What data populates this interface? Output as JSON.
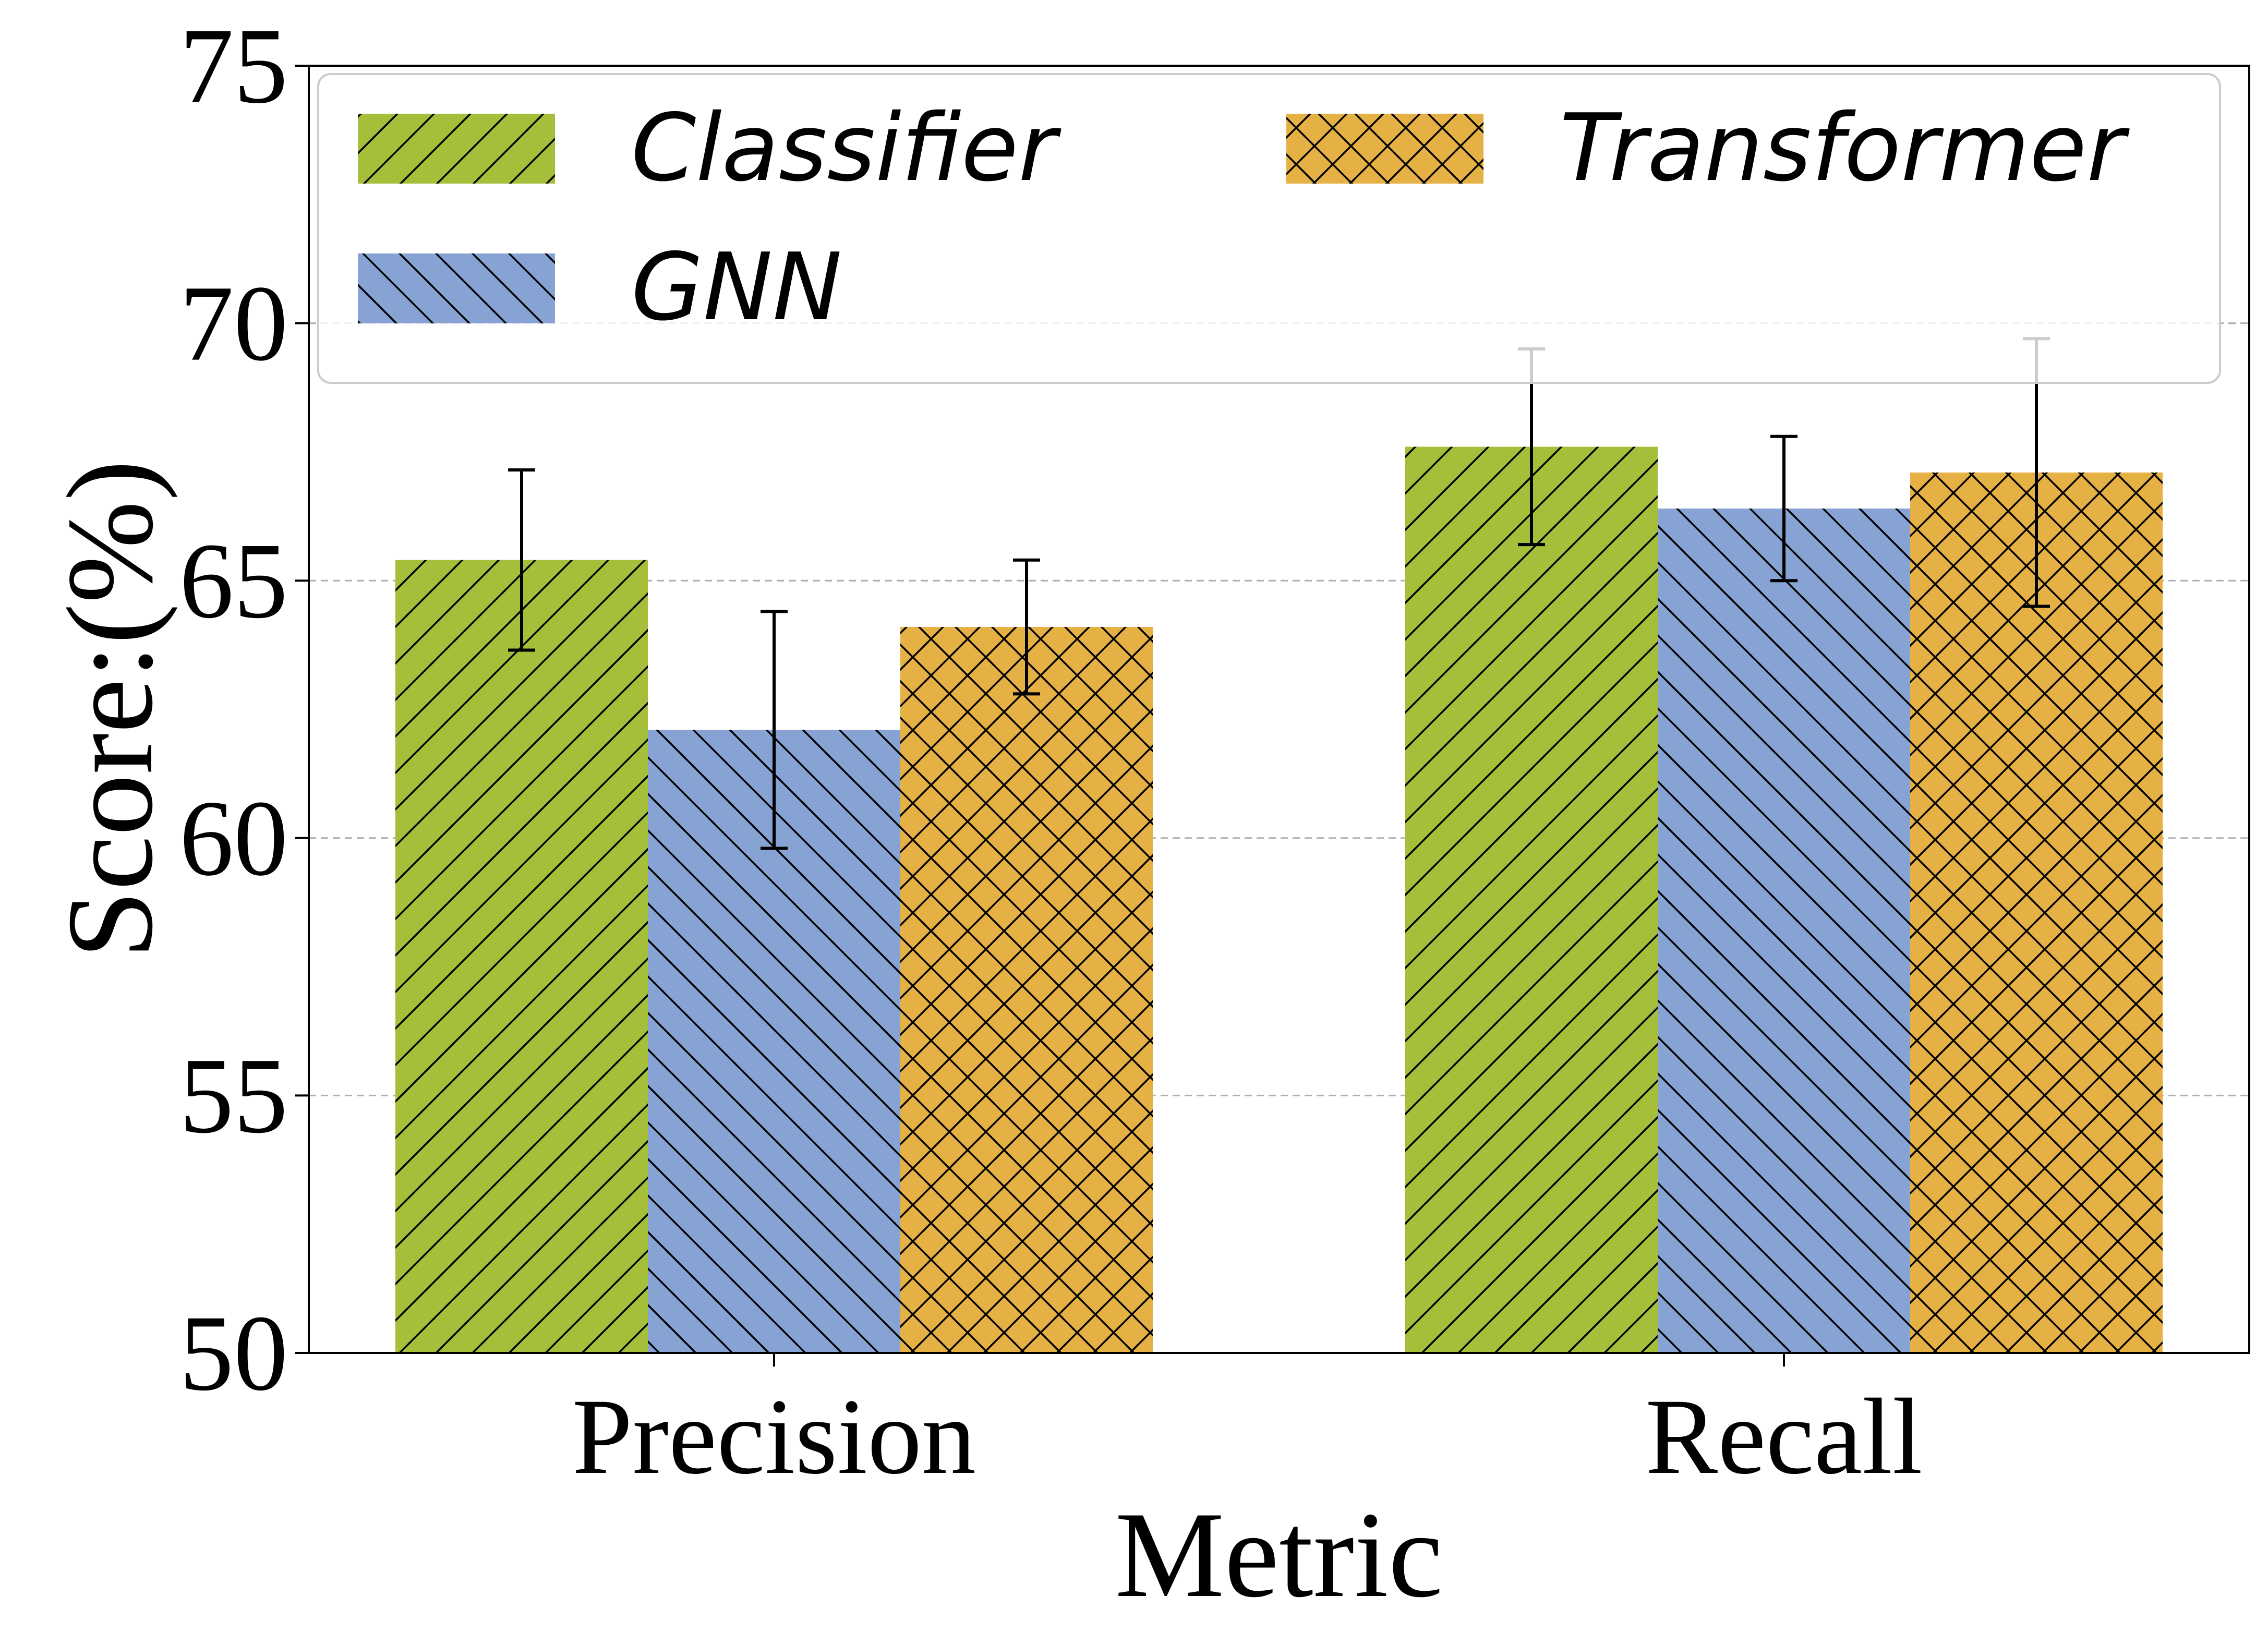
{
  "chart_data": {
    "type": "bar",
    "xlabel": "Metric",
    "ylabel": "Score:(%)",
    "categories": [
      "Precision",
      "Recall"
    ],
    "ylim": [
      50,
      75
    ],
    "yticks": [
      50,
      55,
      60,
      65,
      70,
      75
    ],
    "grid": "horizontal dashed",
    "legend_placement": "top",
    "series": [
      {
        "name": "Classifier",
        "values": [
          65.4,
          67.6
        ],
        "errors": [
          1.75,
          1.9
        ],
        "color": "#a5bf3a",
        "hatch": "forward-diagonal"
      },
      {
        "name": "GNN",
        "values": [
          62.1,
          66.4
        ],
        "errors": [
          2.3,
          1.4
        ],
        "color": "#86a3d4",
        "hatch": "back-diagonal"
      },
      {
        "name": "Transformer",
        "values": [
          64.1,
          67.1
        ],
        "errors": [
          1.3,
          2.6
        ],
        "color": "#e6b144",
        "hatch": "crosshatch"
      }
    ]
  }
}
